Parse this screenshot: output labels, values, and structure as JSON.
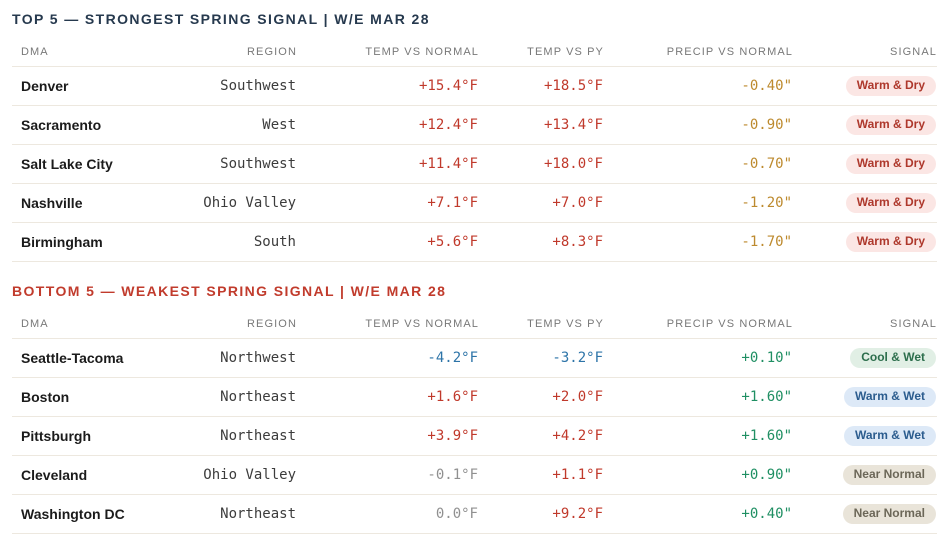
{
  "palette": {
    "title_top": "#26394e",
    "title_bottom": "#c13b2c",
    "header_text": "#787878",
    "dma_text": "#1b1b1b",
    "region_text": "#3c3c3c",
    "temp_positive": "#c0392b",
    "temp_negative": "#2d74a8",
    "temp_neutral": "#909090",
    "precip_negative": "#bd8a2e",
    "precip_positive": "#1f8f63",
    "row_divider": "#ede8df",
    "badges": {
      "warm_dry": {
        "bg": "#fbe6e4",
        "text": "#ae382c"
      },
      "cool_wet": {
        "bg": "#e1efe5",
        "text": "#2c6e4c"
      },
      "warm_wet": {
        "bg": "#dde9f7",
        "text": "#2b5c8e"
      },
      "near_normal": {
        "bg": "#e9e4d9",
        "text": "#6c6758"
      }
    }
  },
  "tables": [
    {
      "title": "TOP 5 — STRONGEST SPRING SIGNAL | W/E MAR 28",
      "columns": [
        "DMA",
        "REGION",
        "TEMP VS NORMAL",
        "TEMP VS PY",
        "PRECIP VS NORMAL",
        "SIGNAL"
      ],
      "rows": [
        {
          "dma": "Denver",
          "region": "Southwest",
          "temp_vs_normal": "+15.4°F",
          "temp_vs_normal_tone": "positive",
          "temp_vs_py": "+18.5°F",
          "temp_vs_py_tone": "positive",
          "precip_vs_normal": "-0.40\"",
          "precip_tone": "dry",
          "signal": "Warm & Dry",
          "signal_variant": "warm-dry"
        },
        {
          "dma": "Sacramento",
          "region": "West",
          "temp_vs_normal": "+12.4°F",
          "temp_vs_normal_tone": "positive",
          "temp_vs_py": "+13.4°F",
          "temp_vs_py_tone": "positive",
          "precip_vs_normal": "-0.90\"",
          "precip_tone": "dry",
          "signal": "Warm & Dry",
          "signal_variant": "warm-dry"
        },
        {
          "dma": "Salt Lake City",
          "region": "Southwest",
          "temp_vs_normal": "+11.4°F",
          "temp_vs_normal_tone": "positive",
          "temp_vs_py": "+18.0°F",
          "temp_vs_py_tone": "positive",
          "precip_vs_normal": "-0.70\"",
          "precip_tone": "dry",
          "signal": "Warm & Dry",
          "signal_variant": "warm-dry"
        },
        {
          "dma": "Nashville",
          "region": "Ohio Valley",
          "temp_vs_normal": "+7.1°F",
          "temp_vs_normal_tone": "positive",
          "temp_vs_py": "+7.0°F",
          "temp_vs_py_tone": "positive",
          "precip_vs_normal": "-1.20\"",
          "precip_tone": "dry",
          "signal": "Warm & Dry",
          "signal_variant": "warm-dry"
        },
        {
          "dma": "Birmingham",
          "region": "South",
          "temp_vs_normal": "+5.6°F",
          "temp_vs_normal_tone": "positive",
          "temp_vs_py": "+8.3°F",
          "temp_vs_py_tone": "positive",
          "precip_vs_normal": "-1.70\"",
          "precip_tone": "dry",
          "signal": "Warm & Dry",
          "signal_variant": "warm-dry"
        }
      ]
    },
    {
      "title": "BOTTOM 5 — WEAKEST SPRING SIGNAL | W/E MAR 28",
      "columns": [
        "DMA",
        "REGION",
        "TEMP VS NORMAL",
        "TEMP VS PY",
        "PRECIP VS NORMAL",
        "SIGNAL"
      ],
      "rows": [
        {
          "dma": "Seattle-Tacoma",
          "region": "Northwest",
          "temp_vs_normal": "-4.2°F",
          "temp_vs_normal_tone": "negative",
          "temp_vs_py": "-3.2°F",
          "temp_vs_py_tone": "negative",
          "precip_vs_normal": "+0.10\"",
          "precip_tone": "wet",
          "signal": "Cool & Wet",
          "signal_variant": "cool-wet"
        },
        {
          "dma": "Boston",
          "region": "Northeast",
          "temp_vs_normal": "+1.6°F",
          "temp_vs_normal_tone": "positive",
          "temp_vs_py": "+2.0°F",
          "temp_vs_py_tone": "positive",
          "precip_vs_normal": "+1.60\"",
          "precip_tone": "wet",
          "signal": "Warm & Wet",
          "signal_variant": "warm-wet"
        },
        {
          "dma": "Pittsburgh",
          "region": "Northeast",
          "temp_vs_normal": "+3.9°F",
          "temp_vs_normal_tone": "positive",
          "temp_vs_py": "+4.2°F",
          "temp_vs_py_tone": "positive",
          "precip_vs_normal": "+1.60\"",
          "precip_tone": "wet",
          "signal": "Warm & Wet",
          "signal_variant": "warm-wet"
        },
        {
          "dma": "Cleveland",
          "region": "Ohio Valley",
          "temp_vs_normal": "-0.1°F",
          "temp_vs_normal_tone": "neutral",
          "temp_vs_py": "+1.1°F",
          "temp_vs_py_tone": "positive",
          "precip_vs_normal": "+0.90\"",
          "precip_tone": "wet",
          "signal": "Near Normal",
          "signal_variant": "near-normal"
        },
        {
          "dma": "Washington DC",
          "region": "Northeast",
          "temp_vs_normal": "0.0°F",
          "temp_vs_normal_tone": "neutral",
          "temp_vs_py": "+9.2°F",
          "temp_vs_py_tone": "positive",
          "precip_vs_normal": "+0.40\"",
          "precip_tone": "wet",
          "signal": "Near Normal",
          "signal_variant": "near-normal"
        }
      ]
    }
  ]
}
